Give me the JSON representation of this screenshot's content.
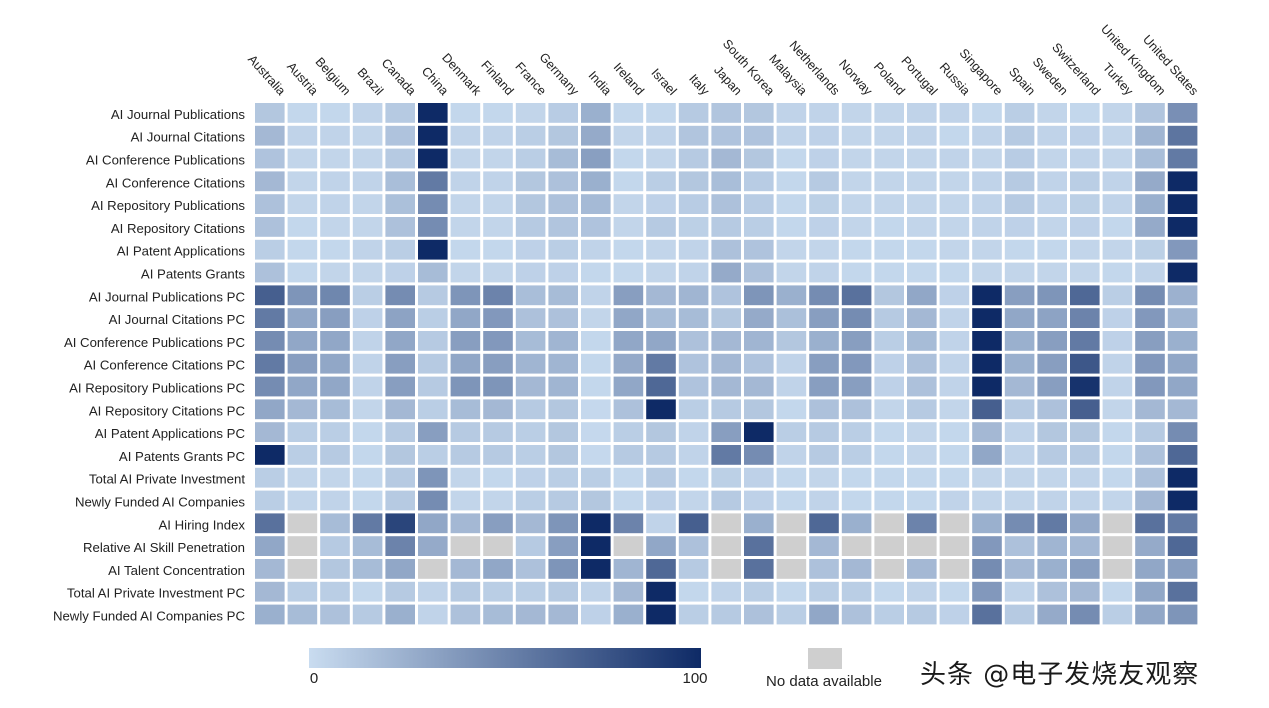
{
  "chart_data": {
    "type": "heatmap",
    "color_scale": {
      "min": 0,
      "max": 100,
      "min_label": "0",
      "max_label": "100",
      "low_color": "#c9dcf0",
      "high_color": "#0e2a66",
      "missing_color": "#cfcfcf",
      "missing_label": "No data available"
    },
    "columns": [
      "Australia",
      "Austria",
      "Belgium",
      "Brazil",
      "Canada",
      "China",
      "Denmark",
      "Finland",
      "France",
      "Germany",
      "India",
      "Ireland",
      "Israel",
      "Italy",
      "Japan",
      "South Korea",
      "Malaysia",
      "Netherlands",
      "Norway",
      "Poland",
      "Portugal",
      "Russia",
      "Singapore",
      "Spain",
      "Sweden",
      "Switzerland",
      "Turkey",
      "United Kingdom",
      "United States"
    ],
    "rows": [
      {
        "label": "AI Journal Publications",
        "values": [
          12,
          3,
          3,
          5,
          10,
          100,
          3,
          3,
          4,
          9,
          25,
          3,
          3,
          10,
          13,
          12,
          5,
          5,
          4,
          4,
          5,
          5,
          3,
          8,
          4,
          3,
          4,
          13,
          43
        ]
      },
      {
        "label": "AI Journal Citations",
        "values": [
          20,
          5,
          5,
          4,
          14,
          100,
          5,
          5,
          8,
          12,
          28,
          4,
          5,
          13,
          14,
          14,
          5,
          6,
          4,
          4,
          5,
          3,
          5,
          10,
          5,
          6,
          4,
          22,
          58
        ]
      },
      {
        "label": "AI Conference Publications",
        "values": [
          14,
          4,
          4,
          4,
          10,
          100,
          4,
          4,
          8,
          18,
          34,
          3,
          4,
          10,
          20,
          12,
          3,
          6,
          4,
          4,
          4,
          5,
          4,
          9,
          4,
          5,
          4,
          17,
          55
        ]
      },
      {
        "label": "AI Conference Citations",
        "values": [
          20,
          4,
          5,
          5,
          17,
          55,
          5,
          5,
          12,
          15,
          25,
          3,
          8,
          12,
          17,
          9,
          3,
          10,
          4,
          4,
          4,
          4,
          5,
          10,
          5,
          8,
          5,
          28,
          100
        ]
      },
      {
        "label": "AI Repository Publications",
        "values": [
          15,
          4,
          5,
          4,
          16,
          45,
          4,
          4,
          12,
          15,
          19,
          4,
          6,
          9,
          15,
          9,
          3,
          7,
          4,
          4,
          4,
          4,
          5,
          10,
          5,
          7,
          5,
          25,
          100
        ]
      },
      {
        "label": "AI Repository Citations",
        "values": [
          15,
          3,
          4,
          4,
          15,
          45,
          4,
          4,
          10,
          13,
          14,
          4,
          10,
          7,
          10,
          8,
          3,
          6,
          4,
          3,
          4,
          4,
          5,
          6,
          4,
          6,
          3,
          28,
          100
        ]
      },
      {
        "label": "AI Patent Applications",
        "values": [
          8,
          3,
          3,
          5,
          8,
          100,
          3,
          3,
          6,
          8,
          5,
          3,
          4,
          5,
          15,
          14,
          4,
          4,
          3,
          3,
          3,
          4,
          4,
          3,
          3,
          4,
          4,
          7,
          38
        ]
      },
      {
        "label": "AI Patents Grants",
        "values": [
          15,
          3,
          4,
          4,
          6,
          18,
          4,
          4,
          6,
          6,
          3,
          3,
          4,
          5,
          28,
          15,
          4,
          5,
          3,
          3,
          3,
          3,
          4,
          4,
          4,
          4,
          3,
          5,
          100
        ]
      },
      {
        "label": "AI Journal Publications PC",
        "values": [
          70,
          40,
          48,
          8,
          45,
          10,
          40,
          50,
          17,
          18,
          5,
          35,
          20,
          22,
          14,
          40,
          25,
          45,
          60,
          12,
          30,
          6,
          100,
          35,
          40,
          65,
          8,
          45,
          24
        ]
      },
      {
        "label": "AI Journal Citations PC",
        "values": [
          55,
          30,
          35,
          6,
          32,
          8,
          30,
          38,
          15,
          15,
          4,
          30,
          18,
          18,
          12,
          28,
          16,
          35,
          45,
          10,
          20,
          5,
          100,
          30,
          32,
          50,
          6,
          38,
          22
        ]
      },
      {
        "label": "AI Conference Publications PC",
        "values": [
          45,
          30,
          30,
          5,
          30,
          10,
          35,
          38,
          18,
          22,
          3,
          30,
          30,
          15,
          20,
          22,
          12,
          25,
          35,
          8,
          18,
          5,
          100,
          25,
          35,
          55,
          6,
          35,
          25
        ]
      },
      {
        "label": "AI Conference Citations PC",
        "values": [
          55,
          35,
          30,
          5,
          35,
          10,
          30,
          35,
          22,
          22,
          3,
          28,
          55,
          14,
          20,
          14,
          5,
          35,
          38,
          6,
          15,
          5,
          100,
          25,
          35,
          75,
          5,
          38,
          30
        ]
      },
      {
        "label": "AI Repository Publications PC",
        "values": [
          45,
          30,
          30,
          5,
          35,
          10,
          40,
          40,
          20,
          22,
          3,
          30,
          65,
          14,
          20,
          20,
          5,
          35,
          35,
          6,
          15,
          5,
          100,
          20,
          35,
          95,
          5,
          38,
          30
        ]
      },
      {
        "label": "AI Repository Citations PC",
        "values": [
          30,
          20,
          18,
          4,
          20,
          8,
          18,
          20,
          10,
          12,
          2,
          15,
          100,
          8,
          10,
          12,
          3,
          15,
          15,
          4,
          10,
          4,
          70,
          10,
          15,
          70,
          4,
          20,
          20
        ]
      },
      {
        "label": "AI Patent Applications PC",
        "values": [
          20,
          8,
          8,
          3,
          10,
          35,
          10,
          10,
          8,
          12,
          2,
          8,
          12,
          5,
          35,
          100,
          8,
          10,
          8,
          3,
          4,
          3,
          20,
          5,
          12,
          12,
          3,
          10,
          45
        ]
      },
      {
        "label": "AI Patents Grants PC",
        "values": [
          100,
          8,
          10,
          3,
          12,
          8,
          10,
          10,
          8,
          12,
          2,
          10,
          10,
          5,
          55,
          45,
          5,
          10,
          8,
          3,
          4,
          3,
          30,
          5,
          10,
          10,
          3,
          15,
          65
        ]
      },
      {
        "label": "Total AI Private Investment",
        "values": [
          8,
          4,
          4,
          3,
          10,
          40,
          4,
          3,
          6,
          8,
          8,
          3,
          10,
          3,
          7,
          6,
          3,
          4,
          3,
          3,
          3,
          3,
          4,
          4,
          4,
          5,
          3,
          15,
          100
        ]
      },
      {
        "label": "Newly Funded AI Companies",
        "values": [
          8,
          4,
          5,
          3,
          10,
          45,
          4,
          4,
          8,
          10,
          12,
          3,
          6,
          4,
          10,
          6,
          3,
          5,
          3,
          3,
          3,
          5,
          4,
          4,
          5,
          5,
          4,
          20,
          100
        ]
      },
      {
        "label": "AI Hiring Index",
        "values": [
          60,
          null,
          18,
          55,
          85,
          30,
          20,
          35,
          20,
          40,
          100,
          50,
          5,
          70,
          null,
          25,
          null,
          65,
          25,
          null,
          50,
          null,
          25,
          45,
          55,
          28,
          null,
          60,
          55
        ]
      },
      {
        "label": "Relative AI Skill Penetration",
        "values": [
          30,
          null,
          10,
          18,
          50,
          28,
          null,
          null,
          10,
          35,
          100,
          null,
          30,
          15,
          null,
          60,
          null,
          20,
          null,
          null,
          null,
          null,
          38,
          15,
          22,
          20,
          null,
          28,
          65
        ]
      },
      {
        "label": "AI Talent Concentration",
        "values": [
          20,
          null,
          12,
          18,
          30,
          null,
          20,
          30,
          15,
          40,
          100,
          22,
          65,
          10,
          null,
          60,
          null,
          15,
          20,
          null,
          20,
          null,
          45,
          20,
          25,
          35,
          null,
          30,
          35
        ]
      },
      {
        "label": "Total AI Private Investment PC",
        "values": [
          20,
          8,
          8,
          3,
          10,
          5,
          10,
          8,
          8,
          10,
          5,
          20,
          100,
          3,
          5,
          8,
          3,
          8,
          8,
          3,
          5,
          3,
          38,
          5,
          15,
          20,
          3,
          30,
          60
        ]
      },
      {
        "label": "Newly Funded AI Companies PC",
        "values": [
          25,
          18,
          15,
          10,
          25,
          5,
          15,
          18,
          20,
          20,
          6,
          25,
          100,
          8,
          10,
          15,
          8,
          30,
          15,
          8,
          10,
          6,
          60,
          10,
          28,
          45,
          8,
          30,
          40
        ]
      }
    ]
  },
  "watermark": "头条 @电子发烧友观察"
}
